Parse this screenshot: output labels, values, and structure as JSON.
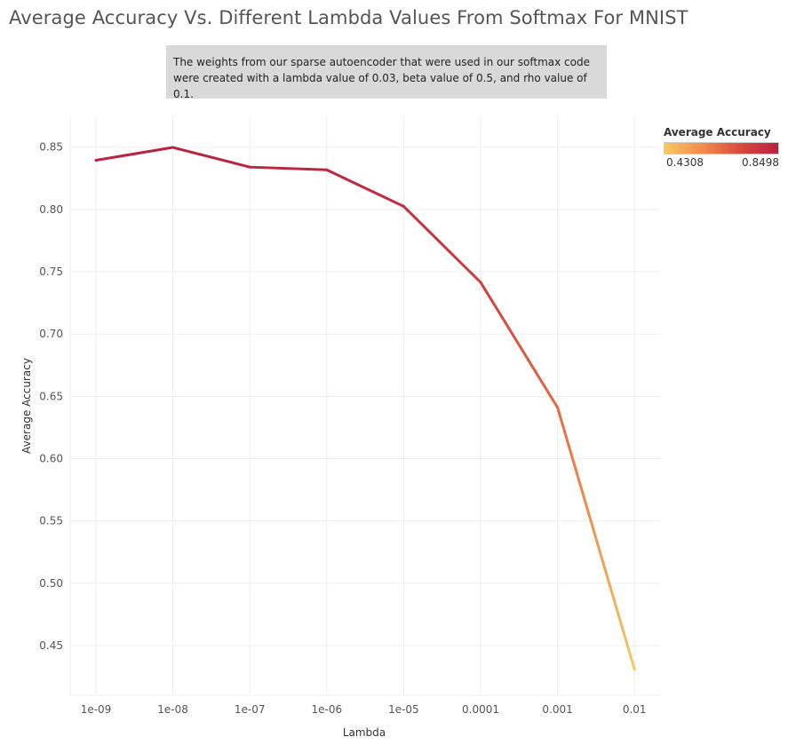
{
  "title": "Average Accuracy Vs. Different Lambda Values From Softmax For MNIST",
  "caption": "The weights from our sparse autoencoder that were used in our softmax code were created with a lambda value of 0.03, beta value of 0.5, and rho value of 0.1.",
  "legend": {
    "title": "Average Accuracy",
    "min_label": "0.4308",
    "max_label": "0.8498",
    "color_low": "#f6c863",
    "color_high": "#b8223f"
  },
  "chart_data": {
    "type": "line",
    "title": "Average Accuracy Vs. Different Lambda Values From Softmax For MNIST",
    "xlabel": "Lambda",
    "ylabel": "Average Accuracy",
    "categories": [
      "1e-09",
      "1e-08",
      "1e-07",
      "1e-06",
      "1e-05",
      "0.0001",
      "0.001",
      "0.01"
    ],
    "values": [
      0.8395,
      0.8498,
      0.834,
      0.8318,
      0.8025,
      0.7415,
      0.641,
      0.4308
    ],
    "y_ticks": [
      "0.45",
      "0.50",
      "0.55",
      "0.60",
      "0.65",
      "0.70",
      "0.75",
      "0.80",
      "0.85"
    ],
    "ylim": [
      0.42,
      0.865
    ],
    "color_range": [
      0.4308,
      0.8498
    ],
    "grid": true
  }
}
